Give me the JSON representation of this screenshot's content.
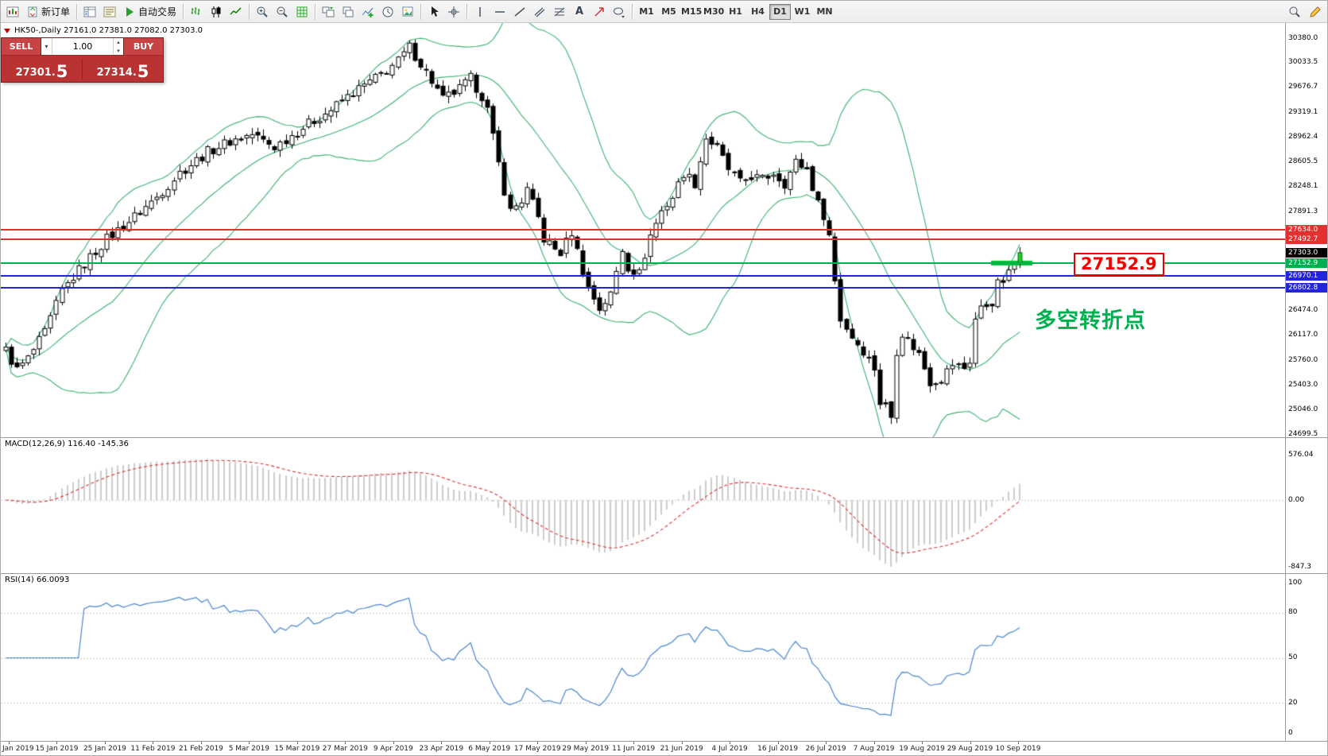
{
  "toolbar": {
    "items": [
      {
        "name": "new-chart",
        "icon": "chart-icon"
      },
      {
        "name": "new-order",
        "icon": "order-icon",
        "label": "新订单"
      },
      {
        "name": "sep"
      },
      {
        "name": "market-watch",
        "icon": "market-watch-icon"
      },
      {
        "name": "data-window",
        "icon": "data-window-icon"
      },
      {
        "name": "autotrading",
        "icon": "play-icon",
        "label": "自动交易"
      },
      {
        "name": "sep"
      },
      {
        "name": "bar-chart",
        "icon": "bars-icon"
      },
      {
        "name": "candle-chart",
        "icon": "candles-icon"
      },
      {
        "name": "line-chart",
        "icon": "line-icon"
      },
      {
        "name": "sep"
      },
      {
        "name": "zoom-in",
        "icon": "zoom-in-icon"
      },
      {
        "name": "zoom-out",
        "icon": "zoom-out-icon"
      },
      {
        "name": "grid",
        "icon": "grid-icon"
      },
      {
        "name": "sep"
      },
      {
        "name": "tile-windows",
        "icon": "tile-icon"
      },
      {
        "name": "cascade-windows",
        "icon": "cascade-icon"
      },
      {
        "name": "add-indicator",
        "icon": "indicator-icon"
      },
      {
        "name": "periods",
        "icon": "clock-icon"
      },
      {
        "name": "templates",
        "icon": "template-icon"
      },
      {
        "name": "sep"
      },
      {
        "name": "cursor",
        "icon": "cursor-icon"
      },
      {
        "name": "crosshair",
        "icon": "crosshair-icon"
      },
      {
        "name": "sep"
      },
      {
        "name": "vertical-line",
        "icon": "vline-icon"
      },
      {
        "name": "horizontal-line",
        "icon": "hline-icon"
      },
      {
        "name": "trendline",
        "icon": "trendline-icon"
      },
      {
        "name": "channel",
        "icon": "channel-icon"
      },
      {
        "name": "fibonacci",
        "icon": "fibo-icon"
      },
      {
        "name": "text",
        "icon": "text-icon"
      },
      {
        "name": "arrows",
        "icon": "arrow-icon"
      },
      {
        "name": "shapes",
        "icon": "shapes-icon"
      },
      {
        "name": "sep"
      }
    ],
    "timeframes": [
      "M1",
      "M5",
      "M15",
      "M30",
      "H1",
      "H4",
      "D1",
      "W1",
      "MN"
    ],
    "active_timeframe": "D1",
    "right_items": [
      {
        "name": "search",
        "icon": "search-icon"
      },
      {
        "name": "quick-edit",
        "icon": "pencil-icon"
      }
    ]
  },
  "trade_panel": {
    "sell_label": "SELL",
    "buy_label": "BUY",
    "volume": "1.00",
    "sell_price_main": "27301.",
    "sell_price_big": "5",
    "buy_price_main": "27314.",
    "buy_price_big": "5"
  },
  "chart": {
    "title": "HK50-,Daily 27161.0 27381.0 27082.0 27303.0",
    "symbol": "HK50-",
    "period": "Daily",
    "annotation_price": "27152.9",
    "annotation_text": "多空转折点",
    "levels": [
      {
        "price": 27634.0,
        "label": "27634.0",
        "color": "#e53030",
        "line": true,
        "thickness": 2
      },
      {
        "price": 27492.7,
        "label": "27492.7",
        "color": "#e53030",
        "line": true,
        "thickness": 2
      },
      {
        "price": 27303.0,
        "label": "27303.0",
        "color": "#000000",
        "line": false,
        "thickness": 0
      },
      {
        "price": 27152.9,
        "label": "27152.9",
        "color": "#00b050",
        "line": true,
        "thickness": 2
      },
      {
        "price": 26970.1,
        "label": "26970.1",
        "color": "#2424dd",
        "line": true,
        "thickness": 2
      },
      {
        "price": 26802.8,
        "label": "26802.8",
        "color": "#2424dd",
        "line": true,
        "thickness": 2
      }
    ],
    "scale_labels": [
      "30380.0",
      "30033.5",
      "29676.7",
      "29319.1",
      "28962.4",
      "28605.5",
      "28248.1",
      "27891.3",
      "26474.0",
      "26117.0",
      "25760.0",
      "25403.0",
      "25046.0",
      "24699.5"
    ]
  },
  "macd": {
    "label_full": "MACD(12,26,9) 116.40 -145.36",
    "scale": [
      "576.04",
      "0.00",
      "-847.3"
    ]
  },
  "rsi": {
    "label_full": "RSI(14) 66.0093",
    "scale": [
      "100",
      "80",
      "50",
      "20",
      "0"
    ]
  },
  "date_axis": [
    "Jan 2019",
    "15 Jan 2019",
    "25 Jan 2019",
    "11 Feb 2019",
    "21 Feb 2019",
    "5 Mar 2019",
    "15 Mar 2019",
    "27 Mar 2019",
    "9 Apr 2019",
    "23 Apr 2019",
    "6 May 2019",
    "17 May 2019",
    "29 May 2019",
    "11 Jun 2019",
    "21 Jun 2019",
    "4 Jul 2019",
    "16 Jul 2019",
    "26 Jul 2019",
    "7 Aug 2019",
    "19 Aug 2019",
    "29 Aug 2019",
    "10 Sep 2019"
  ],
  "chart_data": {
    "type": "candlestick",
    "symbol": "HK50",
    "timeframe": "Daily",
    "candle_count": 182,
    "last_ohlc": {
      "open": 27161.0,
      "high": 27381.0,
      "low": 27082.0,
      "close": 27303.0
    },
    "bid": 27301.5,
    "ask": 27314.5,
    "y_axis": {
      "min": 24699.5,
      "max": 30380.0
    },
    "horizontal_levels": [
      27634.0,
      27492.7,
      27303.0,
      27152.9,
      26970.1,
      26802.8
    ],
    "marker_segment": {
      "price": 27152.9,
      "color": "#00c232"
    },
    "price_anchors": [
      [
        0,
        25900
      ],
      [
        2,
        25620
      ],
      [
        4,
        25780
      ],
      [
        7,
        26150
      ],
      [
        10,
        26750
      ],
      [
        14,
        27150
      ],
      [
        18,
        27500
      ],
      [
        22,
        27750
      ],
      [
        27,
        28100
      ],
      [
        31,
        28450
      ],
      [
        36,
        28750
      ],
      [
        40,
        28900
      ],
      [
        44,
        29000
      ],
      [
        48,
        28820
      ],
      [
        53,
        29100
      ],
      [
        58,
        29350
      ],
      [
        62,
        29600
      ],
      [
        66,
        29800
      ],
      [
        70,
        30050
      ],
      [
        72,
        30250
      ],
      [
        75,
        29900
      ],
      [
        78,
        29500
      ],
      [
        81,
        29650
      ],
      [
        83,
        29800
      ],
      [
        85,
        29550
      ],
      [
        86,
        29350
      ],
      [
        87,
        28950
      ],
      [
        89,
        28200
      ],
      [
        90,
        27900
      ],
      [
        92,
        28050
      ],
      [
        93,
        28200
      ],
      [
        95,
        27800
      ],
      [
        96,
        27500
      ],
      [
        98,
        27350
      ],
      [
        99,
        27300
      ],
      [
        101,
        27600
      ],
      [
        103,
        27050
      ],
      [
        104,
        26800
      ],
      [
        106,
        26500
      ],
      [
        108,
        26700
      ],
      [
        110,
        27350
      ],
      [
        111,
        27100
      ],
      [
        113,
        27000
      ],
      [
        115,
        27550
      ],
      [
        117,
        27900
      ],
      [
        119,
        28100
      ],
      [
        121,
        28450
      ],
      [
        123,
        28300
      ],
      [
        125,
        28950
      ],
      [
        127,
        28800
      ],
      [
        129,
        28500
      ],
      [
        131,
        28300
      ],
      [
        133,
        28400
      ],
      [
        135,
        28350
      ],
      [
        137,
        28450
      ],
      [
        139,
        28300
      ],
      [
        141,
        28600
      ],
      [
        143,
        28500
      ],
      [
        145,
        28000
      ],
      [
        146,
        27850
      ],
      [
        147,
        27550
      ],
      [
        148,
        26900
      ],
      [
        149,
        26350
      ],
      [
        151,
        26100
      ],
      [
        153,
        25900
      ],
      [
        155,
        25650
      ],
      [
        156,
        25150
      ],
      [
        157,
        25100
      ],
      [
        158,
        24950
      ],
      [
        159,
        25900
      ],
      [
        160,
        26150
      ],
      [
        161,
        26050
      ],
      [
        163,
        25850
      ],
      [
        165,
        25450
      ],
      [
        167,
        25500
      ],
      [
        169,
        25700
      ],
      [
        171,
        25650
      ],
      [
        172,
        25750
      ],
      [
        173,
        26350
      ],
      [
        174,
        26500
      ],
      [
        175,
        26550
      ],
      [
        176,
        26600
      ],
      [
        177,
        26850
      ],
      [
        178,
        26900
      ],
      [
        179,
        27000
      ],
      [
        180,
        27150
      ],
      [
        181,
        27303
      ]
    ],
    "indicators": {
      "bollinger": {
        "period": 20,
        "deviation": 2,
        "color": "#3cb371"
      },
      "macd": {
        "fast": 12,
        "slow": 26,
        "signal": 9,
        "current_main": 116.4,
        "current_signal": -145.36,
        "scale_max": 576.04,
        "scale_min": -847.3,
        "histogram_color": "#bdbdbd",
        "signal_color": "#e03030"
      },
      "rsi": {
        "period": 14,
        "current": 66.0093,
        "levels": [
          80,
          50,
          20
        ],
        "color": "#4a86cf"
      }
    },
    "colors": {
      "up": "#ffffff",
      "down": "#000000",
      "wick": "#000000",
      "latest": "#22c92e"
    }
  }
}
